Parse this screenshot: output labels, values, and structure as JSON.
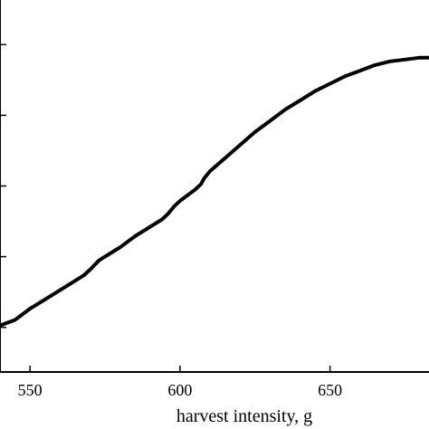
{
  "chart_data": {
    "type": "line",
    "xlabel": "harvest intensity, g",
    "ylabel": "",
    "title": "",
    "x_tick_labels": [
      "550",
      "600",
      "650"
    ],
    "x_ticks": [
      550,
      600,
      650
    ],
    "xlim": [
      540,
      683
    ],
    "ylim": [
      0,
      1
    ],
    "y_tick_values": [
      0.12,
      0.31,
      0.5,
      0.69,
      0.88
    ],
    "grid": false,
    "series": [
      {
        "color": "#000000",
        "points": [
          [
            540,
            0.125
          ],
          [
            545,
            0.14
          ],
          [
            550,
            0.17
          ],
          [
            555,
            0.195
          ],
          [
            560,
            0.22
          ],
          [
            565,
            0.245
          ],
          [
            568,
            0.26
          ],
          [
            570,
            0.275
          ],
          [
            573,
            0.3
          ],
          [
            575,
            0.31
          ],
          [
            580,
            0.335
          ],
          [
            585,
            0.365
          ],
          [
            590,
            0.39
          ],
          [
            594,
            0.41
          ],
          [
            596,
            0.425
          ],
          [
            598,
            0.445
          ],
          [
            600,
            0.46
          ],
          [
            605,
            0.49
          ],
          [
            607,
            0.505
          ],
          [
            608,
            0.52
          ],
          [
            610,
            0.54
          ],
          [
            615,
            0.575
          ],
          [
            620,
            0.61
          ],
          [
            625,
            0.645
          ],
          [
            630,
            0.675
          ],
          [
            635,
            0.705
          ],
          [
            640,
            0.73
          ],
          [
            645,
            0.755
          ],
          [
            650,
            0.775
          ],
          [
            655,
            0.795
          ],
          [
            660,
            0.81
          ],
          [
            665,
            0.825
          ],
          [
            670,
            0.835
          ],
          [
            675,
            0.84
          ],
          [
            680,
            0.845
          ],
          [
            683,
            0.845
          ]
        ]
      }
    ]
  }
}
